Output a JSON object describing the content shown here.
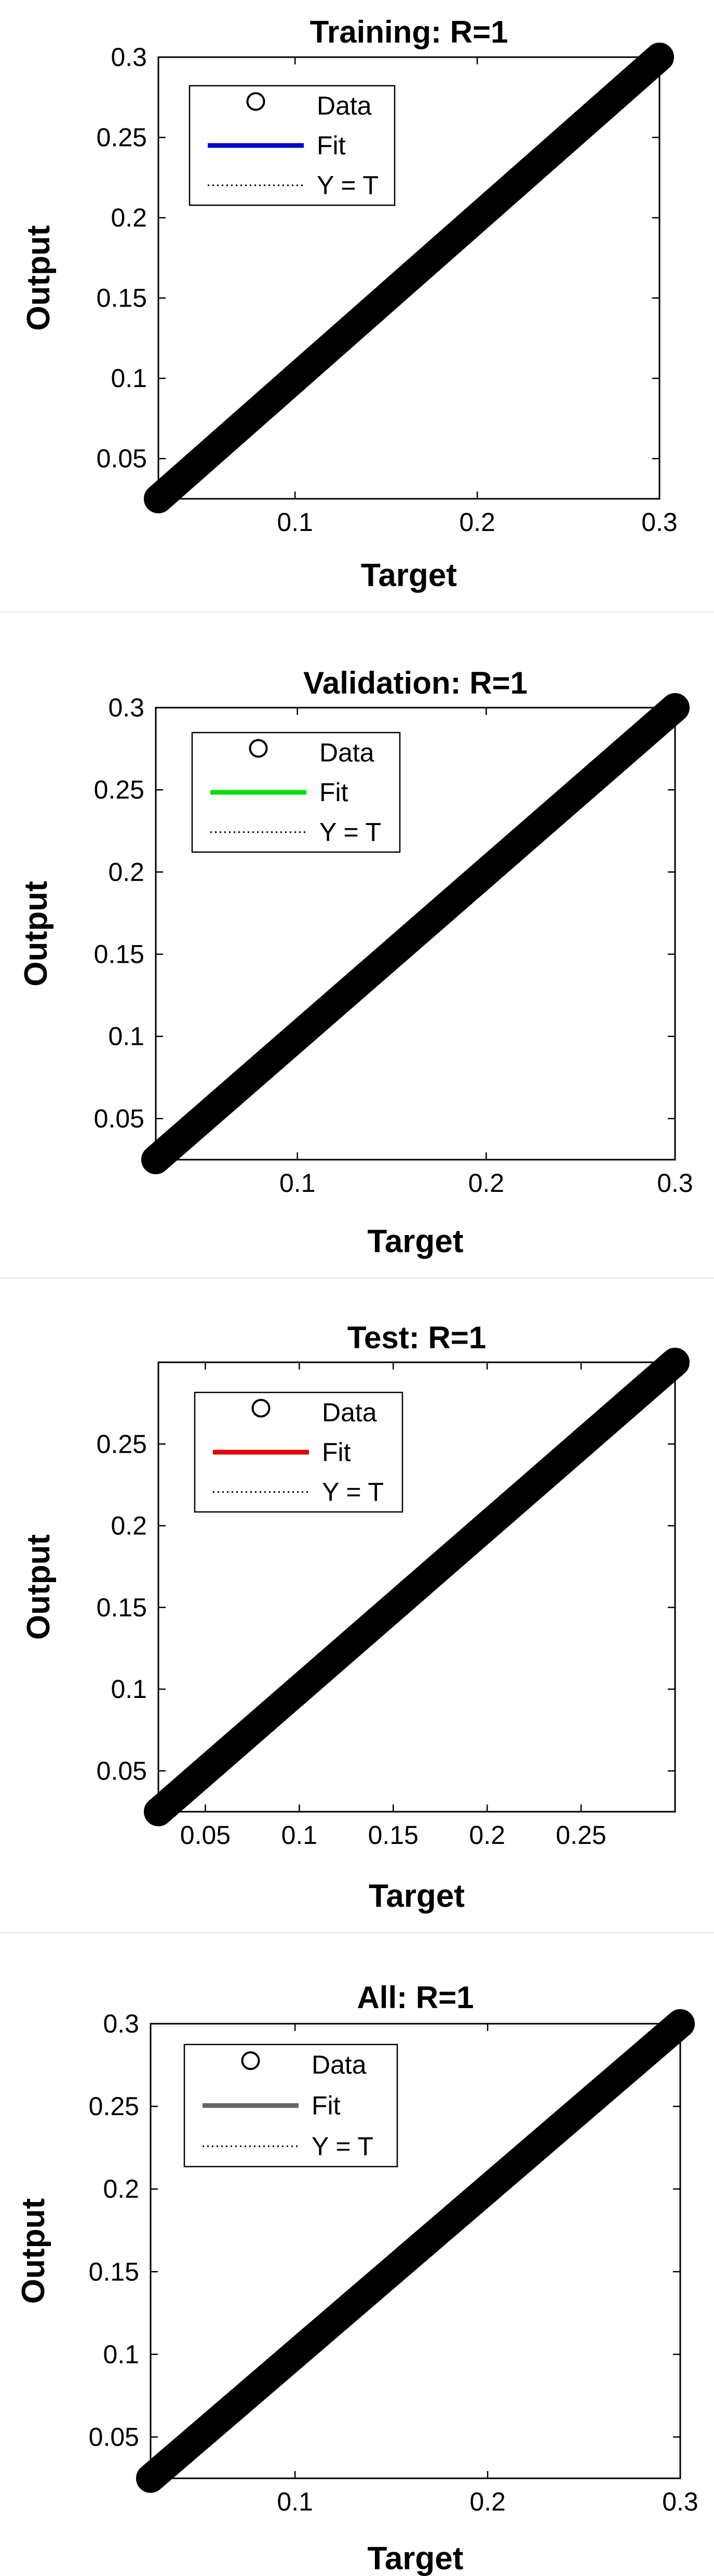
{
  "chart_data": [
    {
      "type": "scatter",
      "title": "Training: R=1",
      "xlabel": "Target",
      "ylabel": "Output",
      "xlim": [
        0.025,
        0.3
      ],
      "ylim": [
        0.025,
        0.3
      ],
      "x_ticks": [
        0.1,
        0.2,
        0.3
      ],
      "y_ticks": [
        0.05,
        0.1,
        0.15,
        0.2,
        0.25,
        0.3
      ],
      "grid": false,
      "legend_position": "top-left",
      "legend": [
        "Data",
        "Fit",
        "Y = T"
      ],
      "fit_color": "#0000cc",
      "data_color": "#000000",
      "series": [
        {
          "name": "Data",
          "style": "markers",
          "x_range": [
            0.025,
            0.3
          ],
          "slope": 1,
          "intercept": 0
        },
        {
          "name": "Fit",
          "style": "line",
          "slope": 1,
          "intercept": 0
        },
        {
          "name": "Y = T",
          "style": "dotted",
          "slope": 1,
          "intercept": 0
        }
      ]
    },
    {
      "type": "scatter",
      "title": "Validation: R=1",
      "xlabel": "Target",
      "ylabel": "Output",
      "xlim": [
        0.025,
        0.3
      ],
      "ylim": [
        0.025,
        0.3
      ],
      "x_ticks": [
        0.1,
        0.2,
        0.3
      ],
      "y_ticks": [
        0.05,
        0.1,
        0.15,
        0.2,
        0.25,
        0.3
      ],
      "grid": false,
      "legend_position": "top-left",
      "legend": [
        "Data",
        "Fit",
        "Y = T"
      ],
      "fit_color": "#00e000",
      "data_color": "#000000",
      "series": [
        {
          "name": "Data",
          "style": "markers",
          "x_range": [
            0.025,
            0.3
          ],
          "slope": 1,
          "intercept": 0
        },
        {
          "name": "Fit",
          "style": "line",
          "slope": 1,
          "intercept": 0
        },
        {
          "name": "Y = T",
          "style": "dotted",
          "slope": 1,
          "intercept": 0
        }
      ]
    },
    {
      "type": "scatter",
      "title": "Test: R=1",
      "xlabel": "Target",
      "ylabel": "Output",
      "xlim": [
        0.025,
        0.3
      ],
      "ylim": [
        0.025,
        0.3
      ],
      "x_ticks": [
        0.05,
        0.1,
        0.15,
        0.2,
        0.25
      ],
      "y_ticks": [
        0.05,
        0.1,
        0.15,
        0.2,
        0.25
      ],
      "grid": false,
      "legend_position": "top-left",
      "legend": [
        "Data",
        "Fit",
        "Y = T"
      ],
      "fit_color": "#e00000",
      "data_color": "#000000",
      "series": [
        {
          "name": "Data",
          "style": "markers",
          "x_range": [
            0.025,
            0.3
          ],
          "slope": 1,
          "intercept": 0
        },
        {
          "name": "Fit",
          "style": "line",
          "slope": 1,
          "intercept": 0
        },
        {
          "name": "Y = T",
          "style": "dotted",
          "slope": 1,
          "intercept": 0
        }
      ]
    },
    {
      "type": "scatter",
      "title": "All: R=1",
      "xlabel": "Target",
      "ylabel": "Output",
      "xlim": [
        0.025,
        0.3
      ],
      "ylim": [
        0.025,
        0.3
      ],
      "x_ticks": [
        0.1,
        0.2,
        0.3
      ],
      "y_ticks": [
        0.05,
        0.1,
        0.15,
        0.2,
        0.25,
        0.3
      ],
      "grid": false,
      "legend_position": "top-left",
      "legend": [
        "Data",
        "Fit",
        "Y = T"
      ],
      "fit_color": "#666666",
      "data_color": "#000000",
      "series": [
        {
          "name": "Data",
          "style": "markers",
          "x_range": [
            0.025,
            0.3
          ],
          "slope": 1,
          "intercept": 0
        },
        {
          "name": "Fit",
          "style": "line",
          "slope": 1,
          "intercept": 0
        },
        {
          "name": "Y = T",
          "style": "dotted",
          "slope": 1,
          "intercept": 0
        }
      ]
    }
  ]
}
